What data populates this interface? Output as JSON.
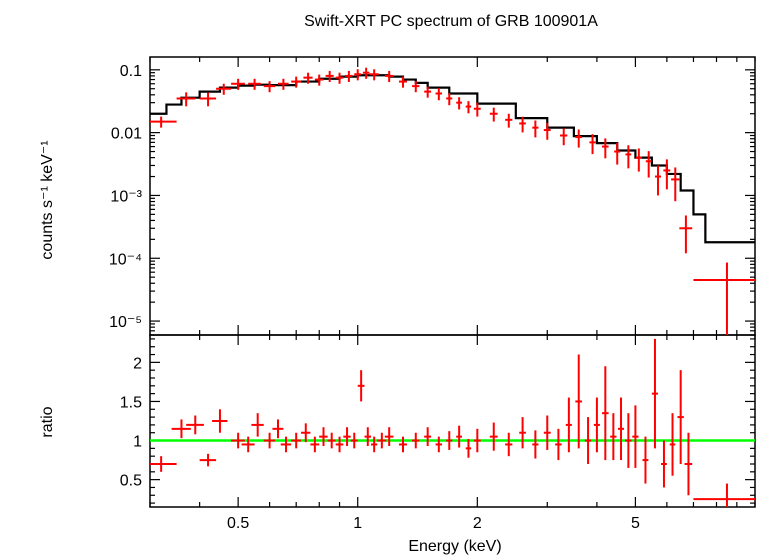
{
  "chart_data": [
    {
      "type": "scatter",
      "panel": "spectrum",
      "title": "Swift-XRT PC spectrum of GRB 100901A",
      "xlabel": "Energy (keV)",
      "ylabel": "counts s⁻¹ keV⁻¹",
      "xscale": "log",
      "yscale": "log",
      "xlim": [
        0.3,
        10
      ],
      "ylim": [
        6e-06,
        0.16
      ],
      "ytick_labels": [
        "10⁻⁵",
        "10⁻⁴",
        "10⁻³",
        "0.01",
        "0.1"
      ],
      "ytick_values": [
        1e-05,
        0.0001,
        0.001,
        0.01,
        0.1
      ],
      "colors": {
        "data": "#ff0000",
        "model": "#000000"
      },
      "series": [
        {
          "kind": "data",
          "x": [
            0.32,
            0.37,
            0.42,
            0.46,
            0.5,
            0.55,
            0.6,
            0.65,
            0.7,
            0.75,
            0.8,
            0.85,
            0.9,
            0.95,
            1.0,
            1.05,
            1.1,
            1.2,
            1.3,
            1.4,
            1.5,
            1.6,
            1.7,
            1.8,
            1.9,
            2.0,
            2.2,
            2.4,
            2.6,
            2.8,
            3.0,
            3.3,
            3.6,
            3.9,
            4.2,
            4.5,
            4.8,
            5.1,
            5.4,
            5.7,
            6.0,
            6.3,
            6.7,
            8.5
          ],
          "y": [
            0.015,
            0.035,
            0.035,
            0.05,
            0.06,
            0.06,
            0.055,
            0.06,
            0.065,
            0.075,
            0.07,
            0.08,
            0.075,
            0.08,
            0.085,
            0.09,
            0.085,
            0.08,
            0.065,
            0.055,
            0.045,
            0.042,
            0.035,
            0.03,
            0.026,
            0.024,
            0.02,
            0.016,
            0.014,
            0.012,
            0.011,
            0.009,
            0.0085,
            0.007,
            0.006,
            0.005,
            0.0045,
            0.004,
            0.0035,
            0.002,
            0.0025,
            0.0018,
            0.0003,
            4.5e-05
          ],
          "xerr": [
            0.03,
            0.02,
            0.02,
            0.02,
            0.02,
            0.02,
            0.02,
            0.02,
            0.02,
            0.02,
            0.02,
            0.02,
            0.02,
            0.02,
            0.02,
            0.02,
            0.03,
            0.03,
            0.03,
            0.03,
            0.03,
            0.03,
            0.03,
            0.03,
            0.03,
            0.04,
            0.05,
            0.05,
            0.05,
            0.05,
            0.06,
            0.07,
            0.07,
            0.07,
            0.08,
            0.08,
            0.08,
            0.09,
            0.09,
            0.1,
            0.12,
            0.15,
            0.25,
            1.5
          ],
          "yerr_frac": [
            0.2,
            0.25,
            0.25,
            0.2,
            0.2,
            0.2,
            0.2,
            0.2,
            0.2,
            0.2,
            0.2,
            0.2,
            0.2,
            0.2,
            0.2,
            0.2,
            0.2,
            0.2,
            0.2,
            0.2,
            0.2,
            0.22,
            0.22,
            0.22,
            0.22,
            0.25,
            0.25,
            0.25,
            0.28,
            0.3,
            0.3,
            0.3,
            0.32,
            0.35,
            0.35,
            0.38,
            0.4,
            0.4,
            0.45,
            0.5,
            0.5,
            0.55,
            0.6,
            0.9
          ]
        },
        {
          "kind": "model",
          "x": [
            0.3,
            0.33,
            0.36,
            0.4,
            0.45,
            0.5,
            0.55,
            0.6,
            0.7,
            0.8,
            0.9,
            1.0,
            1.1,
            1.2,
            1.3,
            1.4,
            1.5,
            1.7,
            2.0,
            2.5,
            3.0,
            3.5,
            4.0,
            4.5,
            5.0,
            5.5,
            6.0,
            6.5,
            7.0,
            7.5,
            10.0
          ],
          "y": [
            0.02,
            0.028,
            0.036,
            0.045,
            0.052,
            0.056,
            0.058,
            0.057,
            0.065,
            0.072,
            0.078,
            0.082,
            0.082,
            0.078,
            0.07,
            0.062,
            0.052,
            0.042,
            0.029,
            0.017,
            0.012,
            0.0088,
            0.0068,
            0.0052,
            0.004,
            0.003,
            0.0022,
            0.0012,
            0.0005,
            0.00018,
            0.00018
          ]
        }
      ]
    },
    {
      "type": "scatter",
      "panel": "ratio",
      "xlabel": "Energy (keV)",
      "ylabel": "ratio",
      "xscale": "log",
      "xlim": [
        0.3,
        10
      ],
      "ylim": [
        0.15,
        2.35
      ],
      "ytick_labels": [
        "0.5",
        "1",
        "1.5",
        "2"
      ],
      "ytick_values": [
        0.5,
        1,
        1.5,
        2
      ],
      "xtick_labels": [
        "0.5",
        "1",
        "2",
        "5"
      ],
      "xtick_values": [
        0.5,
        1,
        2,
        5
      ],
      "reference_line": {
        "y": 1,
        "color": "#00ff00"
      },
      "colors": {
        "data": "#ff0000"
      },
      "series": [
        {
          "kind": "data",
          "x": [
            0.32,
            0.36,
            0.39,
            0.42,
            0.45,
            0.5,
            0.53,
            0.56,
            0.6,
            0.63,
            0.66,
            0.7,
            0.74,
            0.78,
            0.82,
            0.86,
            0.9,
            0.94,
            0.98,
            1.02,
            1.06,
            1.1,
            1.15,
            1.2,
            1.3,
            1.4,
            1.5,
            1.6,
            1.7,
            1.8,
            1.9,
            2.0,
            2.2,
            2.4,
            2.6,
            2.8,
            3.0,
            3.2,
            3.4,
            3.6,
            3.8,
            4.0,
            4.2,
            4.4,
            4.6,
            4.8,
            5.0,
            5.3,
            5.6,
            5.9,
            6.2,
            6.5,
            6.8,
            8.5
          ],
          "y": [
            0.7,
            1.15,
            1.2,
            0.75,
            1.25,
            1.0,
            0.95,
            1.2,
            1.0,
            1.15,
            0.95,
            1.0,
            1.1,
            0.95,
            1.05,
            1.0,
            0.95,
            1.05,
            1.0,
            1.7,
            1.05,
            0.95,
            1.0,
            1.05,
            0.95,
            1.0,
            1.05,
            0.95,
            1.0,
            1.05,
            0.9,
            1.0,
            1.05,
            0.95,
            1.1,
            0.95,
            1.1,
            0.95,
            1.2,
            1.5,
            1.0,
            1.2,
            1.35,
            1.05,
            1.15,
            1.0,
            1.05,
            0.75,
            1.6,
            0.7,
            0.95,
            1.3,
            0.7,
            0.25
          ],
          "xerr": [
            0.03,
            0.02,
            0.02,
            0.02,
            0.02,
            0.02,
            0.02,
            0.02,
            0.02,
            0.02,
            0.02,
            0.02,
            0.02,
            0.02,
            0.02,
            0.02,
            0.02,
            0.02,
            0.02,
            0.02,
            0.02,
            0.02,
            0.03,
            0.03,
            0.03,
            0.03,
            0.03,
            0.03,
            0.03,
            0.03,
            0.03,
            0.04,
            0.05,
            0.05,
            0.05,
            0.05,
            0.06,
            0.06,
            0.06,
            0.07,
            0.07,
            0.07,
            0.08,
            0.08,
            0.08,
            0.09,
            0.09,
            0.09,
            0.1,
            0.1,
            0.1,
            0.12,
            0.15,
            1.5
          ],
          "yerr": [
            0.1,
            0.12,
            0.12,
            0.08,
            0.15,
            0.1,
            0.1,
            0.15,
            0.1,
            0.12,
            0.1,
            0.1,
            0.12,
            0.1,
            0.12,
            0.1,
            0.1,
            0.12,
            0.1,
            0.2,
            0.12,
            0.1,
            0.1,
            0.12,
            0.1,
            0.1,
            0.12,
            0.1,
            0.12,
            0.14,
            0.12,
            0.15,
            0.18,
            0.15,
            0.2,
            0.18,
            0.22,
            0.2,
            0.35,
            0.6,
            0.3,
            0.35,
            0.6,
            0.3,
            0.4,
            0.35,
            0.4,
            0.3,
            0.7,
            0.3,
            0.4,
            0.6,
            0.4,
            0.2
          ]
        }
      ]
    }
  ]
}
